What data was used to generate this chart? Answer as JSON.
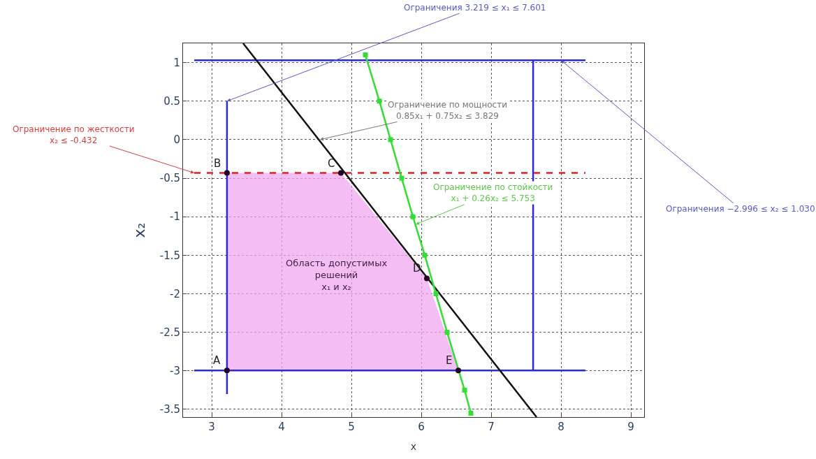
{
  "chart_data": {
    "type": "line",
    "xlabel": "x",
    "ylabel": "x₂",
    "xlim": [
      2.59,
      9.19
    ],
    "xticks": [
      3,
      4,
      5,
      6,
      7,
      8,
      9
    ],
    "ylim": [
      -3.6,
      1.25
    ],
    "yticks": [
      -3.5,
      -3,
      -2.5,
      -2,
      -1.5,
      -1,
      -0.5,
      0,
      0.5,
      1
    ],
    "grid": true,
    "series": [
      {
        "type": "area",
        "color": "#f0a8f0",
        "x": [
          3.219,
          3.219,
          4.85,
          6.08,
          6.53
        ],
        "values": [
          -2.996,
          -0.432,
          -0.432,
          -1.8,
          -2.996
        ]
      },
      {
        "color": "#2b2bd6",
        "x": [
          2.75,
          8.35
        ],
        "values": [
          1.03,
          1.03
        ],
        "marker": "none",
        "line_style": "solid"
      },
      {
        "color": "#2b2bd6",
        "x": [
          2.75,
          8.35
        ],
        "values": [
          -2.996,
          -2.996
        ],
        "marker": "none",
        "line_style": "solid"
      },
      {
        "color": "#2b2bd6",
        "x": [
          3.219,
          3.219
        ],
        "values": [
          0.5,
          -3.3
        ],
        "marker": "none",
        "line_style": "solid"
      },
      {
        "color": "#2b2bd6",
        "x": [
          7.601,
          7.601
        ],
        "values": [
          1.03,
          -3.0
        ],
        "marker": "none",
        "line_style": "solid"
      },
      {
        "color": "#e02020",
        "x": [
          2.75,
          8.35
        ],
        "values": [
          -0.432,
          -0.432
        ],
        "marker": "none",
        "line_style": "dashed"
      },
      {
        "color": "#111111",
        "x": [
          3.45,
          7.65
        ],
        "values": [
          1.25,
          -3.6
        ],
        "marker": "none",
        "line_style": "solid"
      },
      {
        "color": "#33dd33",
        "x": [
          5.2,
          5.4,
          5.56,
          5.72,
          5.88,
          6.05,
          6.21,
          6.37,
          6.62,
          6.71
        ],
        "values": [
          1.1,
          0.5,
          0,
          -0.5,
          -1,
          -1.5,
          -2,
          -2.5,
          -3.25,
          -3.55
        ],
        "marker": "square",
        "line_style": "solid"
      },
      {
        "type": "scatter",
        "color": "#220022",
        "x": [
          3.219,
          3.219,
          4.85,
          6.08,
          6.53
        ],
        "values": [
          -2.996,
          -0.432,
          -0.432,
          -1.8,
          -2.996
        ],
        "marker": "circle"
      }
    ],
    "annotations": [
      {
        "text": "Ограничения 3.219 ≤ x₁ ≤ 7.601",
        "x": 3.219,
        "y": 0.5
      },
      {
        "text": "Ограничение по жесткости\nx₂ ≤ -0.432",
        "x": 2.75,
        "y": -0.432
      },
      {
        "text": "Ограничение по мощности\n0.85x₁ + 0.75x₂ ≤ 3.829",
        "x": 4.55,
        "y": 0
      },
      {
        "text": "Ограничение по стойкости\nx₁ + 0.26x₂ ≤ 5.753",
        "x": 5.92,
        "y": -1.1
      },
      {
        "text": "Ограничения −2.996 ≤ x₂ ≤ 1.030",
        "x": 8.0,
        "y": 1.03
      },
      "Область допустимых\nрешений\nx₁ и x₂",
      {
        "text": "A",
        "x": 3.219,
        "y": -2.996
      },
      {
        "text": "B",
        "x": 3.219,
        "y": -0.432
      },
      {
        "text": "C",
        "x": 4.85,
        "y": -0.432
      },
      {
        "text": "D",
        "x": 6.08,
        "y": -1.8
      },
      {
        "text": "E",
        "x": 6.53,
        "y": -2.996
      }
    ]
  }
}
